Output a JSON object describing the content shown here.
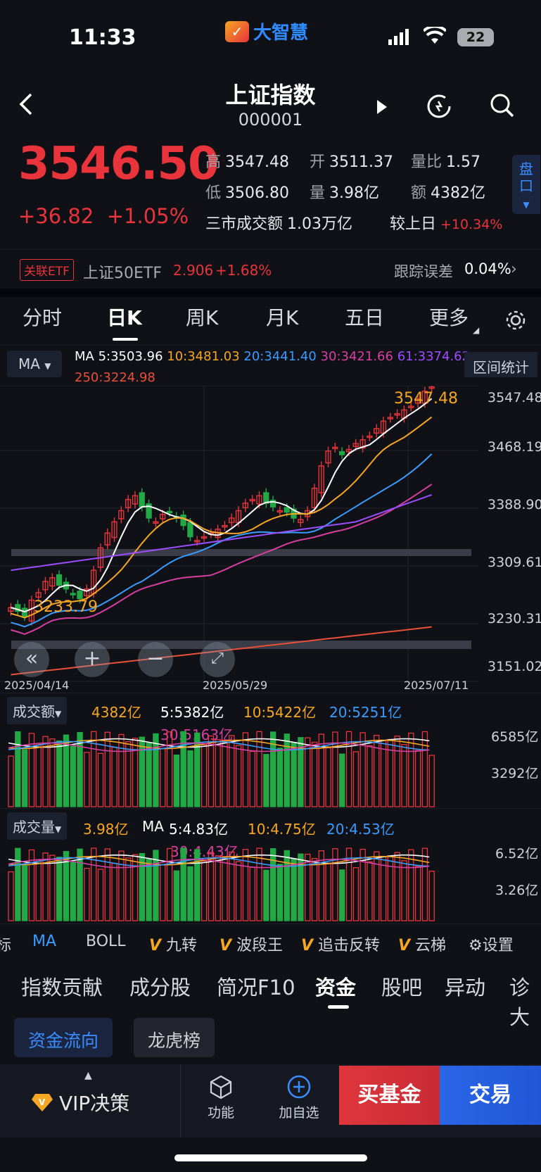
{
  "status_bar": {
    "time": "11:33",
    "battery": "22"
  },
  "app": {
    "logo_text": "大智慧"
  },
  "header": {
    "title": "上证指数",
    "code": "000001"
  },
  "quote": {
    "price": "3546.50",
    "change": "+36.82",
    "change_pct": "+1.05%",
    "high_label": "高",
    "high": "3547.48",
    "open_label": "开",
    "open": "3511.37",
    "vol_ratio_label": "量比",
    "vol_ratio": "1.57",
    "low_label": "低",
    "low": "3506.80",
    "volume_label": "量",
    "volume": "3.98亿",
    "amount_label": "额",
    "amount": "4382亿",
    "market_turnover_label": "三市成交额",
    "market_turnover": "1.03万亿",
    "vs_prev_label": "较上日",
    "vs_prev": "+10.34%",
    "side_tab": "盘口"
  },
  "etf": {
    "tag": "关联ETF",
    "name": "上证50ETF",
    "price": "2.906",
    "change": "+1.68%",
    "tracking_label": "跟踪误差",
    "tracking_value": "0.04%"
  },
  "period_tabs": [
    "分时",
    "日K",
    "周K",
    "月K",
    "五日",
    "更多"
  ],
  "active_period": "日K",
  "ma_legend": {
    "button": "MA",
    "title": "MA",
    "ma5": "5:3503.96",
    "ma10": "10:3481.03",
    "ma20": "20:3441.40",
    "ma30": "30:3421.66",
    "ma61": "61:3374.62",
    "ma250": "250:3224.98",
    "range_stats": "区间统计"
  },
  "price_chart": {
    "y_ticks": [
      "3547.48",
      "3468.19",
      "3388.90",
      "3309.61",
      "3230.31",
      "3151.02"
    ],
    "x_ticks": [
      "2025/04/14",
      "2025/05/29",
      "2025/07/11"
    ],
    "max_label": "3547.48",
    "min_label": "3233.79"
  },
  "amount_panel": {
    "button": "成交额",
    "value": "4382亿",
    "ma5": "5:5382亿",
    "ma10": "10:5422亿",
    "ma20": "20:5251亿",
    "ma30": "30:5163亿",
    "y_ticks": [
      "6585亿",
      "3292亿"
    ]
  },
  "volume_panel": {
    "button": "成交量",
    "value": "3.98亿",
    "ma_title": "MA",
    "ma5": "5:4.83亿",
    "ma10": "10:4.75亿",
    "ma20": "20:4.53亿",
    "ma30": "30:4.43亿",
    "y_ticks": [
      "6.52亿",
      "3.26亿"
    ]
  },
  "indicator_row": {
    "partial": "标",
    "ma": "MA",
    "boll": "BOLL",
    "v1": "九转",
    "v2": "波段王",
    "v3": "追击反转",
    "v4": "云梯",
    "settings": "设置"
  },
  "nav_tabs": [
    "指数贡献",
    "成分股",
    "简况F10",
    "资金",
    "股吧",
    "异动",
    "诊大"
  ],
  "active_nav": "资金",
  "chips": [
    "资金流向",
    "龙虎榜"
  ],
  "bottom_bar": {
    "vip": "VIP决策",
    "func": "功能",
    "add": "加自选",
    "buy_fund": "买基金",
    "trade": "交易"
  },
  "colors": {
    "up": "#e8343a",
    "down": "#22a845",
    "ma5": "#ffffff",
    "ma10": "#f5a623",
    "ma20": "#3a9bff",
    "ma30": "#d63fa0",
    "ma61": "#9b4dff",
    "ma250": "#e8503a",
    "accent": "#2e8cff"
  }
}
